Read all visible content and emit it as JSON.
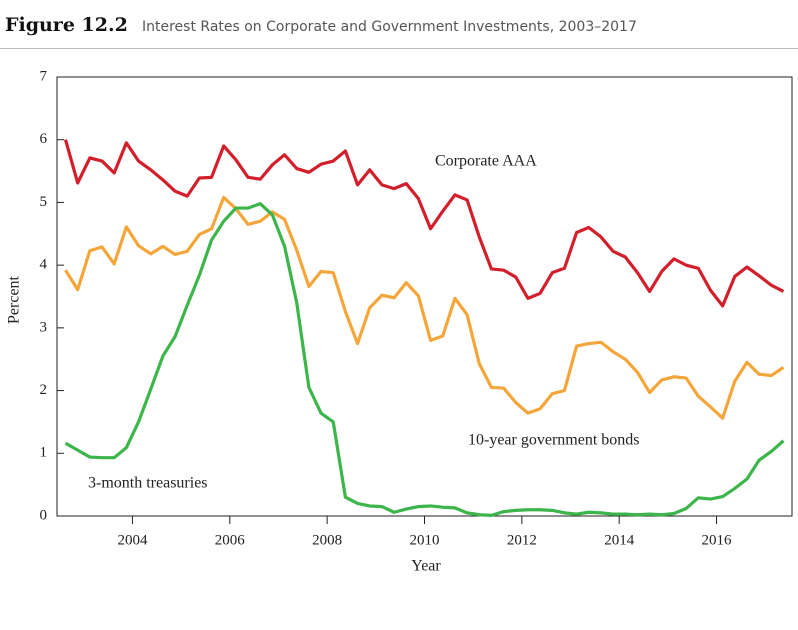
{
  "chart_data": {
    "type": "line",
    "figure_label": "Figure 12.2",
    "title": "Interest Rates on Corporate and Government Investments, 2003–2017",
    "x_label": "Year",
    "y_label": "Percent",
    "x": [
      2002.625,
      2002.875,
      2003.125,
      2003.375,
      2003.625,
      2003.875,
      2004.125,
      2004.375,
      2004.625,
      2004.875,
      2005.125,
      2005.375,
      2005.625,
      2005.875,
      2006.125,
      2006.375,
      2006.625,
      2006.875,
      2007.125,
      2007.375,
      2007.625,
      2007.875,
      2008.125,
      2008.375,
      2008.625,
      2008.875,
      2009.125,
      2009.375,
      2009.625,
      2009.875,
      2010.125,
      2010.375,
      2010.625,
      2010.875,
      2011.125,
      2011.375,
      2011.625,
      2011.875,
      2012.125,
      2012.375,
      2012.625,
      2012.875,
      2013.125,
      2013.375,
      2013.625,
      2013.875,
      2014.125,
      2014.375,
      2014.625,
      2014.875,
      2015.125,
      2015.375,
      2015.625,
      2015.875,
      2016.125,
      2016.375,
      2016.625,
      2016.875,
      2017.125,
      2017.375
    ],
    "series": [
      {
        "name": "Corporate AAA",
        "color": "#d21f2b",
        "values": [
          6.0,
          5.31,
          5.71,
          5.66,
          5.47,
          5.95,
          5.66,
          5.52,
          5.36,
          5.18,
          5.1,
          5.39,
          5.4,
          5.9,
          5.68,
          5.4,
          5.37,
          5.6,
          5.76,
          5.54,
          5.48,
          5.61,
          5.66,
          5.82,
          5.28,
          5.52,
          5.28,
          5.22,
          5.3,
          5.06,
          4.58,
          4.86,
          5.12,
          5.04,
          4.45,
          3.94,
          3.92,
          3.81,
          3.47,
          3.55,
          3.88,
          3.95,
          4.52,
          4.6,
          4.45,
          4.22,
          4.13,
          3.88,
          3.58,
          3.9,
          4.1,
          4.0,
          3.95,
          3.6,
          3.35,
          3.82,
          3.97,
          3.83,
          3.68,
          3.58
        ]
      },
      {
        "name": "10-year government bonds",
        "color": "#f5a63a",
        "values": [
          3.92,
          3.61,
          4.23,
          4.29,
          4.02,
          4.61,
          4.31,
          4.18,
          4.3,
          4.17,
          4.22,
          4.49,
          4.58,
          5.08,
          4.9,
          4.65,
          4.7,
          4.85,
          4.73,
          4.24,
          3.66,
          3.9,
          3.88,
          3.26,
          2.75,
          3.32,
          3.52,
          3.48,
          3.72,
          3.51,
          2.8,
          2.87,
          3.47,
          3.21,
          2.43,
          2.05,
          2.04,
          1.81,
          1.64,
          1.71,
          1.95,
          2.0,
          2.71,
          2.75,
          2.77,
          2.62,
          2.5,
          2.29,
          1.97,
          2.17,
          2.22,
          2.2,
          1.91,
          1.74,
          1.56,
          2.15,
          2.45,
          2.26,
          2.24,
          2.37
        ]
      },
      {
        "name": "3-month treasuries",
        "color": "#3cb54a",
        "values": [
          1.16,
          1.05,
          0.94,
          0.93,
          0.93,
          1.09,
          1.5,
          2.02,
          2.55,
          2.86,
          3.36,
          3.84,
          4.4,
          4.7,
          4.91,
          4.91,
          4.98,
          4.8,
          4.3,
          3.4,
          2.05,
          1.64,
          1.5,
          0.3,
          0.2,
          0.16,
          0.15,
          0.06,
          0.11,
          0.15,
          0.16,
          0.14,
          0.13,
          0.05,
          0.02,
          0.01,
          0.07,
          0.09,
          0.1,
          0.1,
          0.09,
          0.05,
          0.03,
          0.06,
          0.05,
          0.03,
          0.03,
          0.02,
          0.03,
          0.02,
          0.04,
          0.12,
          0.29,
          0.27,
          0.31,
          0.44,
          0.59,
          0.89,
          1.03,
          1.2
        ]
      }
    ],
    "xlim": [
      2002.45,
      2017.55
    ],
    "xticks": [
      2004,
      2006,
      2008,
      2010,
      2012,
      2014,
      2016
    ],
    "ylim": [
      0,
      7
    ],
    "yticks": [
      0,
      1,
      2,
      3,
      4,
      5,
      6,
      7
    ]
  }
}
